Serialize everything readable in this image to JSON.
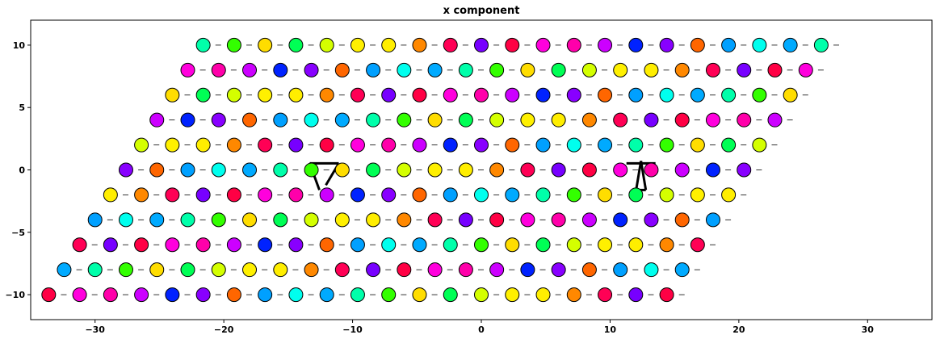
{
  "chart_data": {
    "type": "scatter",
    "title": "x component",
    "xlabel": "",
    "ylabel": "",
    "xlim": [
      -35,
      35
    ],
    "ylim": [
      -12,
      12
    ],
    "xticks": [
      -30,
      -20,
      -10,
      0,
      10,
      20,
      30
    ],
    "yticks": [
      -10,
      -5,
      0,
      5,
      10
    ],
    "xtick_labels": [
      "−30",
      "−20",
      "−10",
      "0",
      "10",
      "20",
      "30"
    ],
    "ytick_labels": [
      "−10",
      "−5",
      "0",
      "5",
      "10"
    ],
    "grid": false,
    "lattice": {
      "kind": "triangular",
      "spacing": 2.4,
      "rows": 11,
      "row_height": 2.0,
      "row_y_start": -10,
      "row_x_start": -33.6,
      "row_x_shift": 1.2,
      "sites_per_row": 21
    },
    "colors": [
      "#ff0044",
      "#00a0ff",
      "#d4ff00",
      "#ff00dd",
      "#00ffee",
      "#fff000",
      "#ff00aa",
      "#00aaff",
      "#ffee00",
      "#cc00ff",
      "#00ffaa",
      "#ff8800",
      "#0022ff",
      "#33ff00",
      "#ff0055",
      "#8800ff",
      "#ffdd00",
      "#7700ff",
      "#ff6600",
      "#00ff55"
    ],
    "vortex_centers": [
      {
        "x": -12.2,
        "y": 0.2
      },
      {
        "x": 12.4,
        "y": 0.2
      }
    ]
  }
}
